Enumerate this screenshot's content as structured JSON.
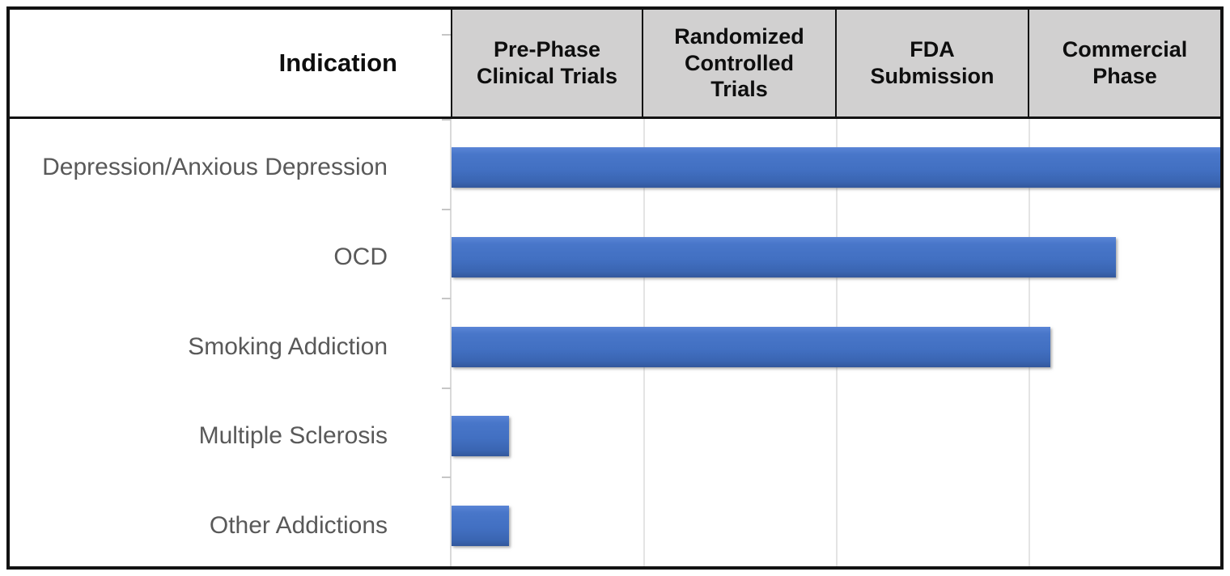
{
  "table": {
    "indication_header": "Indication",
    "phase_headers": [
      "Pre-Phase\nClinical Trials",
      "Randomized\nControlled\nTrials",
      "FDA\nSubmission",
      "Commercial\nPhase"
    ]
  },
  "chart_data": {
    "type": "bar",
    "orientation": "horizontal",
    "title": "",
    "categories": [
      "Depression/Anxious Depression",
      "OCD",
      "Smoking Addiction",
      "Multiple Sclerosis",
      "Other Addictions"
    ],
    "values": [
      4.0,
      3.45,
      3.11,
      0.3,
      0.3
    ],
    "value_meaning": "progress across development phases, in phase-column units from 0 to 4",
    "xlim": [
      0,
      4
    ],
    "x_column_labels": [
      "Pre-Phase Clinical Trials",
      "Randomized Controlled Trials",
      "FDA Submission",
      "Commercial Phase"
    ],
    "legend": "none",
    "grid": "light vertical gridlines at phase column boundaries",
    "colors": {
      "bar": "#4472c4",
      "bar_gradient_top": "#5a85d6",
      "bar_gradient_bottom": "#33589c",
      "header_bg": "#d1d0d0",
      "header_text": "#0e0e0e",
      "label_text": "#595959",
      "border": "#121212",
      "gridline": "#e4e4e4",
      "axis_line": "#d9d9d9",
      "tick": "#c6c6c6"
    }
  }
}
